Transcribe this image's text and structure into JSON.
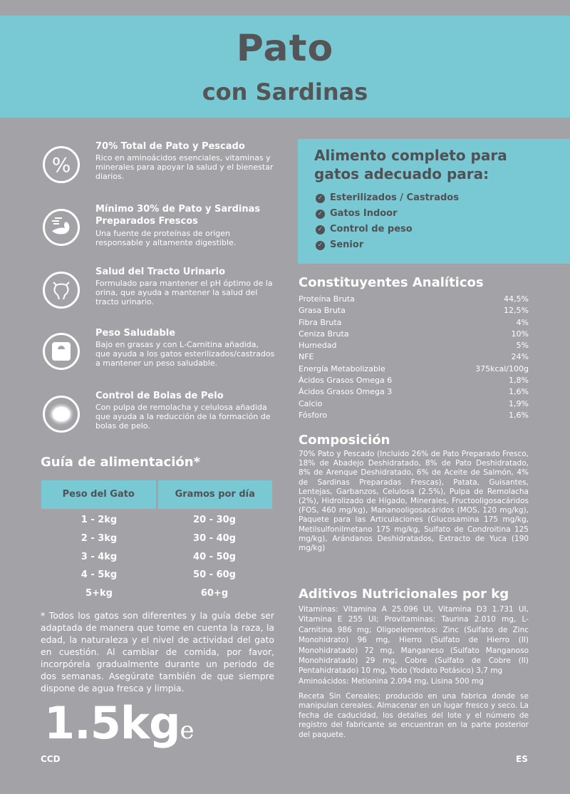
{
  "header": {
    "title": "Pato",
    "subtitle": "con Sardinas"
  },
  "features": [
    {
      "icon": "percent-icon",
      "title": "70% Total de Pato y Pescado",
      "text": "Rico en aminoácidos esenciales, vitaminas y minerales para apoyar la salud y el bienestar diarios."
    },
    {
      "icon": "duck-fish-icon",
      "title": "Mínimo 30% de Pato y Sardinas Preparados Frescos",
      "text": "Una fuente de proteínas de origen responsable y altamente digestible."
    },
    {
      "icon": "bladder-icon",
      "title": "Salud del Tracto Urinario",
      "text": "Formulado para mantener el pH óptimo de la orina, que ayuda a mantener la salud del tracto urinario."
    },
    {
      "icon": "scale-icon",
      "title": "Peso Saludable",
      "text": "Bajo en grasas y con L-Carnitina añadida, que ayuda a los gatos esterilizados/castrados a mantener un peso saludable."
    },
    {
      "icon": "hairball-icon",
      "title": "Control de Bolas de Pelo",
      "text": "Con pulpa de remolacha y celulosa añadida que ayuda a la reducción de la formación de bolas de pelo."
    }
  ],
  "suitable": {
    "title": "Alimento completo para gatos adecuado para:",
    "items": [
      "Esterilizados / Castrados",
      "Gatos Indoor",
      "Control de peso",
      "Senior"
    ]
  },
  "analytical": {
    "title": "Constituyentes Analíticos",
    "rows": [
      [
        "Proteína Bruta",
        "44,5%"
      ],
      [
        "Grasa Bruta",
        "12,5%"
      ],
      [
        "Fibra Bruta",
        "4%"
      ],
      [
        "Ceniza Bruta",
        "10%"
      ],
      [
        "Humedad",
        "5%"
      ],
      [
        "NFE",
        "24%"
      ],
      [
        "Energía Metabolizable",
        "375kcal/100g"
      ],
      [
        "Ácidos Grasos Omega 6",
        "1,8%"
      ],
      [
        "Ácidos Grasos Omega 3",
        "1,6%"
      ],
      [
        "Calcio",
        "1,9%"
      ],
      [
        "Fósforo",
        "1,6%"
      ]
    ]
  },
  "composition": {
    "title": "Composición",
    "text": "70% Pato y Pescado (Incluido 26% de Pato Preparado Fresco, 18% de Abadejo Deshidratado, 8% de Pato Deshidratado, 8% de Arenque Deshidratado, 6% de Aceite de Salmón, 4% de Sardinas Preparadas Frescas), Patata, Guisantes, Lentejas, Garbanzos, Celulosa (2.5%), Pulpa de Remolacha (2%), Hidrolizado de Hígado, Minerales, Fructooligosacáridos (FOS, 460 mg/kg), Mananooligosacáridos (MOS, 120 mg/kg), Paquete para las Articulaciones (Glucosamina 175 mg/kg, Metilsulfonilmetano 175 mg/kg, Sulfato de Condroitina 125 mg/kg), Arándanos Deshidratados, Extracto de Yuca (190 mg/kg)"
  },
  "additives": {
    "title": "Aditivos Nutricionales por kg",
    "text": "Vitaminas: Vitamina A 25.096 UI, Vitamina D3 1.731 UI, Vitamina E 255 UI; Provitaminas: Taurina 2.010 mg, L-Carnitina 986 mg; Oligoelementos: Zinc (Sulfato de Zinc Monohidrato) 96 mg, Hierro (Sulfato de Hierro (II) Monohidratado) 72 mg, Manganeso (Sulfato Manganoso Monohidratado) 29 mg, Cobre (Sulfato de Cobre (II) Pentahidratado) 10 mg, Yodo (Yodato Potásico) 3,7 mg",
    "amino": "Aminoácidos: Metionina 2.094 mg, Lisina 500 mg"
  },
  "storage": "Receta Sin Cereales; producido en una fabrica donde se manipulan cereales. Almacenar en un lugar fresco y seco. La fecha de caducidad, los detalles del lote y el número de registro del fabricante se encuentran en la parte posterior del paquete.",
  "guide": {
    "title": "Guía de alimentación*",
    "headers": [
      "Peso del Gato",
      "Gramos por día"
    ],
    "rows": [
      [
        "1 - 2kg",
        "20 - 30g"
      ],
      [
        "2 - 3kg",
        "30 - 40g"
      ],
      [
        "3 - 4kg",
        "40 - 50g"
      ],
      [
        "4 - 5kg",
        "50 - 60g"
      ],
      [
        "5+kg",
        "60+g"
      ]
    ],
    "footnote": "* Todos los gatos son diferentes y la guía debe ser adaptada de manera que tome en cuenta la raza, la edad, la naturaleza y el nivel de actividad del gato en cuestión. Al cambiar de comida, por favor, incorpórela gradualmente durante un periodo de dos semanas. Asegúrate también de que siempre dispone de agua fresca y limpia."
  },
  "weight": {
    "value": "1.5kg",
    "mark": "e"
  },
  "footer": {
    "left": "CCD",
    "right": "ES"
  },
  "colors": {
    "background": "#a3a2a6",
    "accent": "#79c9d5",
    "dark_text": "#4f5155"
  }
}
